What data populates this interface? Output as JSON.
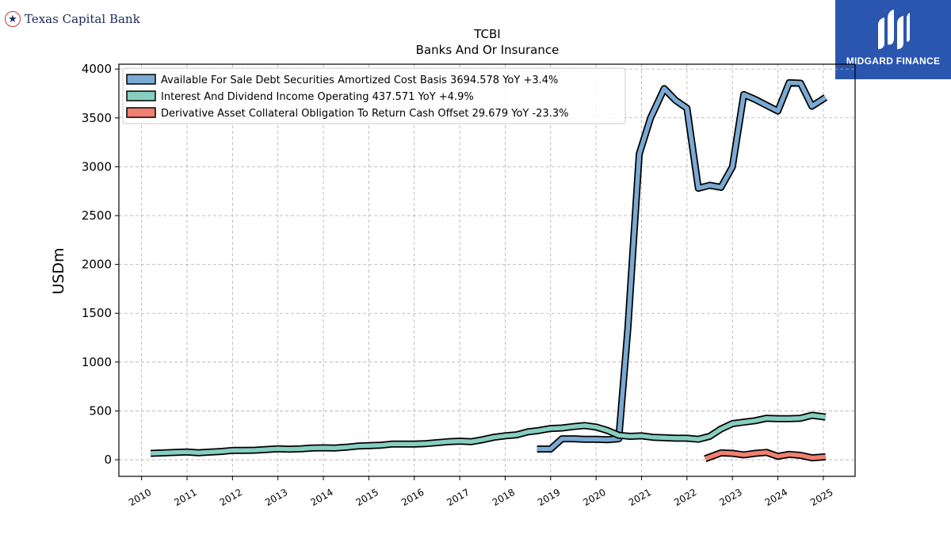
{
  "header": {
    "left_logo_text": "Texas Capital Bank",
    "left_logo_icon": "star-icon",
    "right_logo_text": "MIDGARD FINANCE"
  },
  "chart_data": {
    "type": "line",
    "title": "TCBI",
    "subtitle": "Banks And Or Insurance",
    "xlabel": "",
    "ylabel": "USDm",
    "ylim": [
      -170,
      4050
    ],
    "xlim": [
      2009.5,
      2025.7
    ],
    "yticks": [
      0,
      500,
      1000,
      1500,
      2000,
      2500,
      3000,
      3500,
      4000
    ],
    "xticks": [
      "2010",
      "2011",
      "2012",
      "2013",
      "2014",
      "2015",
      "2016",
      "2017",
      "2018",
      "2019",
      "2020",
      "2021",
      "2022",
      "2023",
      "2024",
      "2025"
    ],
    "grid": true,
    "legend_position": "top-left",
    "series": [
      {
        "name": "Available For Sale Debt Securities Amortized Cost Basis",
        "legend_label": "Available For Sale Debt Securities Amortized Cost Basis  3694.578 YoY +3.4%",
        "color": "#7aaad4",
        "points": [
          [
            2018.7,
            110
          ],
          [
            2019.0,
            110
          ],
          [
            2019.25,
            215
          ],
          [
            2019.5,
            215
          ],
          [
            2019.75,
            210
          ],
          [
            2020.0,
            210
          ],
          [
            2020.25,
            205
          ],
          [
            2020.5,
            215
          ],
          [
            2020.7,
            1350
          ],
          [
            2020.95,
            3130
          ],
          [
            2021.2,
            3500
          ],
          [
            2021.5,
            3800
          ],
          [
            2021.75,
            3680
          ],
          [
            2022.0,
            3600
          ],
          [
            2022.25,
            2780
          ],
          [
            2022.5,
            2810
          ],
          [
            2022.75,
            2790
          ],
          [
            2023.0,
            3000
          ],
          [
            2023.25,
            3740
          ],
          [
            2023.5,
            3690
          ],
          [
            2023.75,
            3630
          ],
          [
            2024.0,
            3570
          ],
          [
            2024.25,
            3860
          ],
          [
            2024.5,
            3855
          ],
          [
            2024.75,
            3620
          ],
          [
            2025.05,
            3710
          ]
        ]
      },
      {
        "name": "Interest And Dividend Income Operating",
        "legend_label": "Interest And Dividend Income Operating  437.571 YoY +4.9%",
        "color": "#86cfc0",
        "points": [
          [
            2010.2,
            65
          ],
          [
            2010.5,
            70
          ],
          [
            2010.75,
            75
          ],
          [
            2011.0,
            80
          ],
          [
            2011.25,
            72
          ],
          [
            2011.5,
            78
          ],
          [
            2011.75,
            85
          ],
          [
            2012.0,
            95
          ],
          [
            2012.25,
            95
          ],
          [
            2012.5,
            98
          ],
          [
            2012.75,
            105
          ],
          [
            2013.0,
            112
          ],
          [
            2013.25,
            108
          ],
          [
            2013.5,
            112
          ],
          [
            2013.75,
            120
          ],
          [
            2014.0,
            122
          ],
          [
            2014.25,
            120
          ],
          [
            2014.5,
            128
          ],
          [
            2014.75,
            140
          ],
          [
            2015.0,
            145
          ],
          [
            2015.25,
            148
          ],
          [
            2015.5,
            160
          ],
          [
            2015.75,
            160
          ],
          [
            2016.0,
            160
          ],
          [
            2016.25,
            165
          ],
          [
            2016.5,
            175
          ],
          [
            2016.75,
            185
          ],
          [
            2017.0,
            190
          ],
          [
            2017.25,
            185
          ],
          [
            2017.5,
            205
          ],
          [
            2017.75,
            230
          ],
          [
            2018.0,
            245
          ],
          [
            2018.25,
            255
          ],
          [
            2018.5,
            285
          ],
          [
            2018.75,
            300
          ],
          [
            2019.0,
            320
          ],
          [
            2019.25,
            325
          ],
          [
            2019.5,
            340
          ],
          [
            2019.75,
            350
          ],
          [
            2020.0,
            335
          ],
          [
            2020.25,
            300
          ],
          [
            2020.5,
            250
          ],
          [
            2020.75,
            240
          ],
          [
            2021.0,
            245
          ],
          [
            2021.25,
            230
          ],
          [
            2021.5,
            225
          ],
          [
            2021.75,
            220
          ],
          [
            2022.0,
            220
          ],
          [
            2022.25,
            210
          ],
          [
            2022.5,
            240
          ],
          [
            2022.75,
            315
          ],
          [
            2023.0,
            370
          ],
          [
            2023.25,
            385
          ],
          [
            2023.5,
            400
          ],
          [
            2023.75,
            425
          ],
          [
            2024.0,
            420
          ],
          [
            2024.25,
            420
          ],
          [
            2024.5,
            425
          ],
          [
            2024.75,
            455
          ],
          [
            2025.05,
            438
          ]
        ]
      },
      {
        "name": "Derivative Asset Collateral Obligation To Return Cash Offset",
        "legend_label": "Derivative Asset Collateral Obligation To Return Cash Offset  29.679 YoY -23.3%",
        "color": "#f08070",
        "points": [
          [
            2022.4,
            10
          ],
          [
            2022.75,
            70
          ],
          [
            2023.0,
            65
          ],
          [
            2023.25,
            50
          ],
          [
            2023.5,
            65
          ],
          [
            2023.75,
            75
          ],
          [
            2024.0,
            35
          ],
          [
            2024.25,
            55
          ],
          [
            2024.5,
            45
          ],
          [
            2024.75,
            20
          ],
          [
            2025.05,
            30
          ]
        ]
      }
    ]
  }
}
